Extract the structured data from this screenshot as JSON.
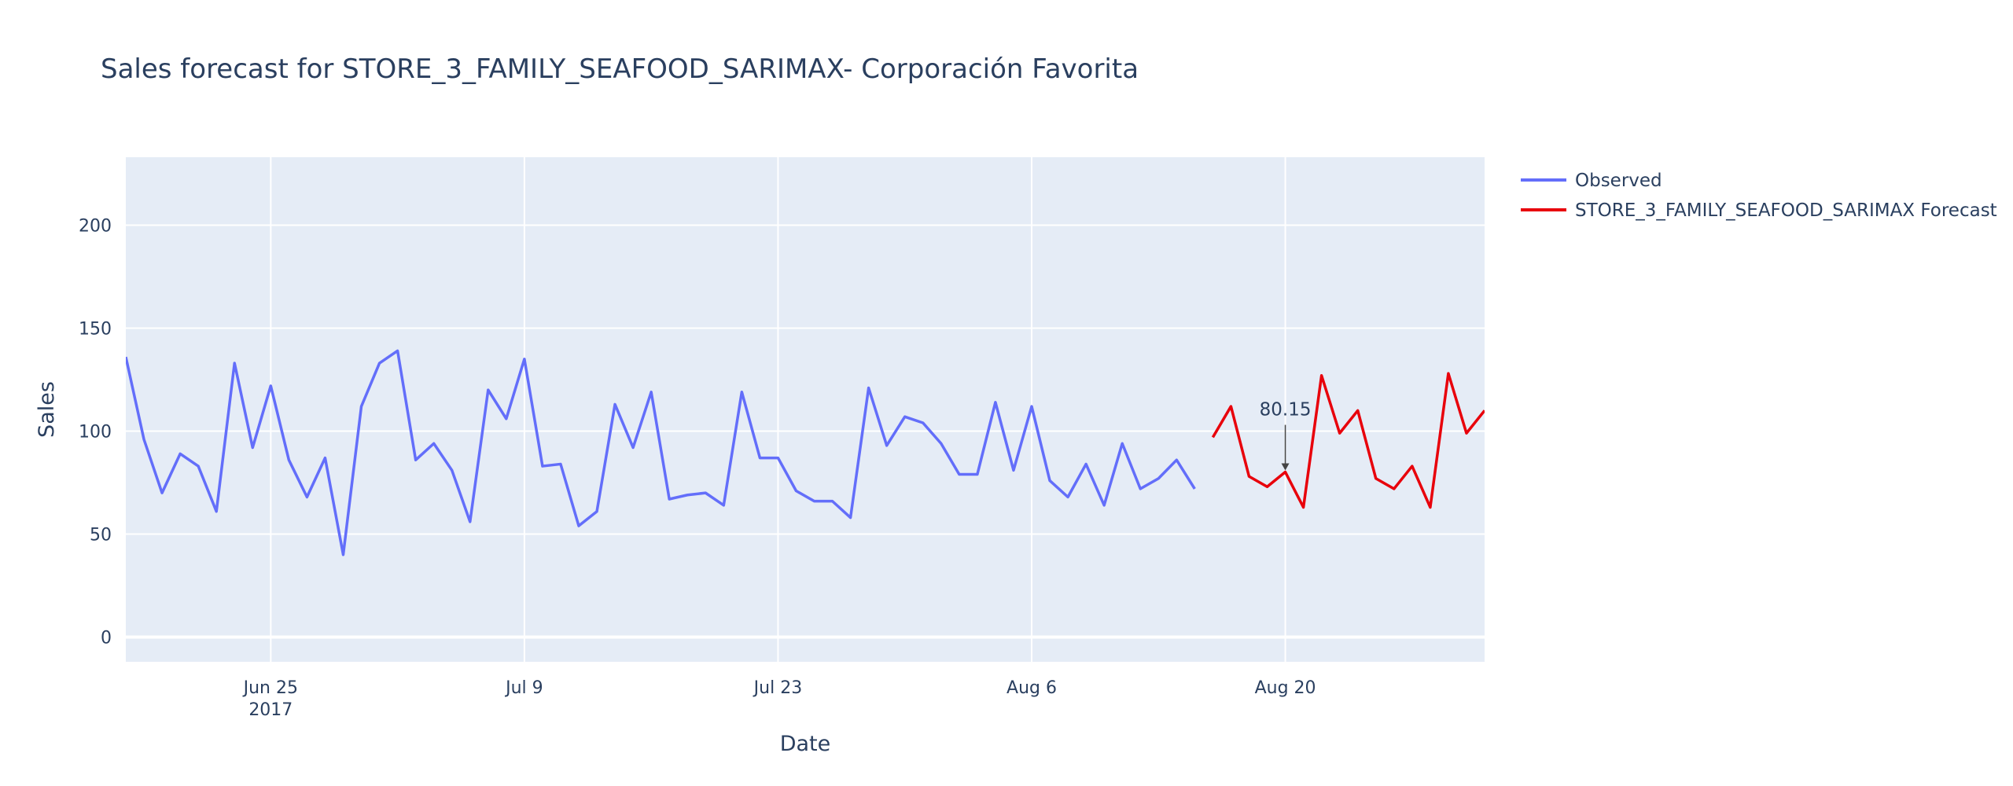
{
  "chart_data": {
    "type": "line",
    "title": "Sales forecast for STORE_3_FAMILY_SEAFOOD_SARIMAX- Corporación Favorita",
    "xlabel": "Date",
    "ylabel": "Sales",
    "xlim": [
      "2017-06-17",
      "2017-08-31"
    ],
    "ylim": [
      -12,
      233
    ],
    "x_ticks": [
      {
        "date": "2017-06-25",
        "label": "Jun 25",
        "sublabel": "2017"
      },
      {
        "date": "2017-07-09",
        "label": "Jul 9",
        "sublabel": ""
      },
      {
        "date": "2017-07-23",
        "label": "Jul 23",
        "sublabel": ""
      },
      {
        "date": "2017-08-06",
        "label": "Aug 6",
        "sublabel": ""
      },
      {
        "date": "2017-08-20",
        "label": "Aug 20",
        "sublabel": ""
      }
    ],
    "y_ticks": [
      0,
      50,
      100,
      150,
      200
    ],
    "grid": true,
    "legend_position": "right",
    "series": [
      {
        "name": "Observed",
        "color": "#636efa",
        "start_date": "2017-06-17",
        "values": [
          136,
          96,
          70,
          89,
          83,
          61,
          133,
          92,
          122,
          86,
          68,
          87,
          40,
          112,
          133,
          139,
          86,
          94,
          81,
          56,
          120,
          106,
          135,
          83,
          84,
          54,
          61,
          113,
          92,
          119,
          67,
          69,
          70,
          64,
          119,
          87,
          87,
          71,
          66,
          66,
          58,
          121,
          93,
          107,
          104,
          94,
          79,
          79,
          114,
          81,
          112,
          76,
          68,
          84,
          64,
          94,
          72,
          77,
          86,
          72
        ]
      },
      {
        "name": "STORE_3_FAMILY_SEAFOOD_SARIMAX Forecast",
        "color": "#e8000b",
        "start_date": "2017-08-16",
        "values": [
          97,
          112,
          78,
          73,
          80.15,
          63,
          127,
          99,
          110,
          77,
          72,
          83,
          63,
          128,
          99,
          110
        ]
      }
    ],
    "annotation": {
      "date": "2017-08-20",
      "value": 80.15,
      "text": "80.15"
    }
  }
}
